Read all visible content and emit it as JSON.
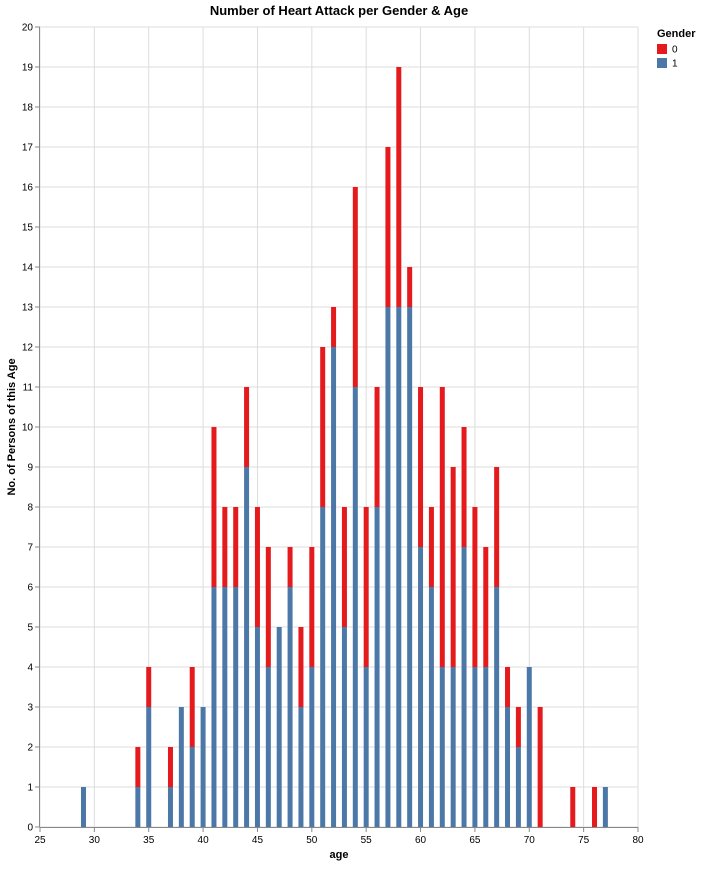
{
  "chart_data": {
    "type": "bar",
    "stacked": true,
    "title": "Number of Heart Attack per Gender & Age",
    "xlabel": "age",
    "ylabel": "No. of Persons of this Age",
    "xlim": [
      25,
      80
    ],
    "ylim": [
      0,
      20
    ],
    "xticks": [
      25,
      30,
      35,
      40,
      45,
      50,
      55,
      60,
      65,
      70,
      75,
      80
    ],
    "yticks": [
      0,
      1,
      2,
      3,
      4,
      5,
      6,
      7,
      8,
      9,
      10,
      11,
      12,
      13,
      14,
      15,
      16,
      17,
      18,
      19,
      20
    ],
    "grid": true,
    "legend": {
      "title": "Gender",
      "position": "top-right",
      "entries": [
        "0",
        "1"
      ]
    },
    "x": [
      29,
      34,
      35,
      37,
      38,
      39,
      40,
      41,
      42,
      43,
      44,
      45,
      46,
      47,
      48,
      49,
      50,
      51,
      52,
      53,
      54,
      55,
      56,
      57,
      58,
      59,
      60,
      61,
      62,
      63,
      64,
      65,
      66,
      67,
      68,
      69,
      70,
      71,
      74,
      76,
      77
    ],
    "series": [
      {
        "name": "1",
        "color": "#4c78a8",
        "values": [
          1,
          1,
          3,
          1,
          3,
          2,
          3,
          6,
          6,
          6,
          9,
          5,
          4,
          5,
          6,
          3,
          4,
          8,
          12,
          5,
          11,
          4,
          8,
          13,
          13,
          13,
          7,
          6,
          4,
          4,
          7,
          4,
          4,
          6,
          3,
          2,
          4,
          0,
          0,
          0,
          1
        ]
      },
      {
        "name": "0",
        "color": "#e41a1c",
        "values": [
          0,
          1,
          1,
          1,
          0,
          2,
          0,
          4,
          2,
          2,
          2,
          3,
          3,
          0,
          1,
          2,
          3,
          4,
          1,
          3,
          5,
          4,
          3,
          4,
          6,
          1,
          4,
          2,
          7,
          5,
          3,
          4,
          3,
          3,
          1,
          1,
          0,
          3,
          1,
          1,
          0
        ]
      }
    ]
  }
}
